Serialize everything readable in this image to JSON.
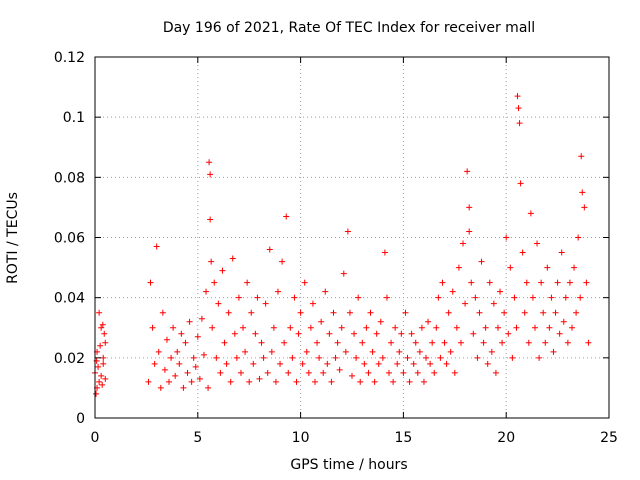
{
  "chart_data": {
    "type": "scatter",
    "title": "Day 196 of 2021, Rate Of TEC Index for receiver mall",
    "xlabel": "GPS time / hours",
    "ylabel": "ROTI / TECUs",
    "xlim": [
      0,
      25
    ],
    "ylim": [
      0,
      0.12
    ],
    "xticks": [
      0,
      5,
      10,
      15,
      20,
      25
    ],
    "xtick_labels": [
      "0",
      "5",
      "10",
      "15",
      "20",
      "25"
    ],
    "yticks": [
      0,
      0.02,
      0.04,
      0.06,
      0.08,
      0.1,
      0.12
    ],
    "ytick_labels": [
      "0",
      "0.02",
      "0.04",
      "0.06",
      "0.08",
      "0.1",
      "0.12"
    ],
    "grid": true,
    "marker": "+",
    "series": [
      {
        "name": "ROTI",
        "color": "#ff0000",
        "x": [
          0.0,
          0.1,
          0.2,
          0.3,
          0.4,
          0.5,
          0.1,
          0.3,
          0.2,
          0.4,
          0.05,
          0.45,
          0.15,
          0.35,
          0.25,
          0.5,
          0.08,
          0.38,
          2.6,
          2.7,
          2.8,
          2.9,
          3.0,
          3.1,
          3.2,
          3.3,
          3.4,
          3.5,
          3.6,
          3.7,
          3.8,
          3.9,
          4.0,
          4.1,
          4.2,
          4.3,
          4.4,
          4.5,
          4.6,
          4.7,
          4.8,
          4.9,
          5.0,
          5.1,
          5.2,
          5.3,
          5.4,
          5.5,
          5.55,
          5.6,
          5.6,
          5.65,
          5.7,
          5.8,
          5.9,
          6.0,
          6.1,
          6.2,
          6.3,
          6.4,
          6.5,
          6.6,
          6.7,
          6.8,
          6.9,
          7.0,
          7.1,
          7.2,
          7.3,
          7.4,
          7.5,
          7.6,
          7.7,
          7.8,
          7.9,
          8.0,
          8.1,
          8.2,
          8.3,
          8.4,
          8.5,
          8.6,
          8.7,
          8.8,
          8.9,
          9.0,
          9.1,
          9.2,
          9.3,
          9.4,
          9.5,
          9.6,
          9.7,
          9.8,
          9.9,
          10.0,
          10.1,
          10.2,
          10.3,
          10.4,
          10.5,
          10.6,
          10.7,
          10.8,
          10.9,
          11.0,
          11.1,
          11.2,
          11.3,
          11.4,
          11.5,
          11.6,
          11.7,
          11.8,
          11.9,
          12.0,
          12.1,
          12.2,
          12.3,
          12.4,
          12.5,
          12.6,
          12.7,
          12.8,
          12.9,
          13.0,
          13.1,
          13.2,
          13.3,
          13.4,
          13.5,
          13.6,
          13.7,
          13.8,
          13.9,
          14.0,
          14.1,
          14.2,
          14.3,
          14.4,
          14.5,
          14.6,
          14.7,
          14.8,
          14.9,
          15.0,
          15.1,
          15.2,
          15.3,
          15.4,
          15.5,
          15.6,
          15.7,
          15.8,
          15.9,
          16.0,
          16.1,
          16.2,
          16.3,
          16.4,
          16.5,
          16.6,
          16.7,
          16.8,
          16.9,
          17.0,
          17.1,
          17.2,
          17.3,
          17.4,
          17.5,
          17.6,
          17.7,
          17.8,
          17.9,
          18.0,
          18.1,
          18.2,
          18.2,
          18.3,
          18.4,
          18.5,
          18.6,
          18.7,
          18.8,
          18.9,
          19.0,
          19.1,
          19.2,
          19.3,
          19.4,
          19.5,
          19.6,
          19.7,
          19.8,
          19.9,
          20.0,
          20.1,
          20.2,
          20.3,
          20.4,
          20.5,
          20.55,
          20.6,
          20.65,
          20.7,
          20.8,
          20.9,
          21.0,
          21.1,
          21.2,
          21.3,
          21.4,
          21.5,
          21.6,
          21.7,
          21.8,
          21.9,
          22.0,
          22.1,
          22.2,
          22.3,
          22.4,
          22.5,
          22.6,
          22.7,
          22.8,
          22.9,
          23.0,
          23.1,
          23.2,
          23.3,
          23.4,
          23.5,
          23.6,
          23.65,
          23.7,
          23.8,
          23.9,
          24.0
        ],
        "y": [
          0.015,
          0.022,
          0.012,
          0.03,
          0.018,
          0.025,
          0.01,
          0.014,
          0.035,
          0.02,
          0.008,
          0.028,
          0.017,
          0.011,
          0.024,
          0.013,
          0.019,
          0.031,
          0.012,
          0.045,
          0.03,
          0.018,
          0.057,
          0.022,
          0.01,
          0.035,
          0.016,
          0.026,
          0.012,
          0.02,
          0.03,
          0.014,
          0.022,
          0.018,
          0.028,
          0.01,
          0.025,
          0.015,
          0.032,
          0.012,
          0.02,
          0.017,
          0.027,
          0.013,
          0.033,
          0.021,
          0.042,
          0.01,
          0.085,
          0.081,
          0.066,
          0.052,
          0.03,
          0.045,
          0.02,
          0.038,
          0.015,
          0.049,
          0.025,
          0.018,
          0.035,
          0.012,
          0.053,
          0.028,
          0.02,
          0.04,
          0.015,
          0.03,
          0.022,
          0.045,
          0.012,
          0.035,
          0.018,
          0.028,
          0.04,
          0.013,
          0.025,
          0.02,
          0.038,
          0.015,
          0.056,
          0.022,
          0.03,
          0.012,
          0.042,
          0.018,
          0.052,
          0.025,
          0.067,
          0.015,
          0.03,
          0.02,
          0.04,
          0.012,
          0.028,
          0.035,
          0.018,
          0.045,
          0.022,
          0.015,
          0.03,
          0.038,
          0.012,
          0.025,
          0.02,
          0.032,
          0.015,
          0.042,
          0.018,
          0.028,
          0.012,
          0.035,
          0.02,
          0.025,
          0.016,
          0.03,
          0.048,
          0.022,
          0.062,
          0.035,
          0.014,
          0.028,
          0.02,
          0.04,
          0.012,
          0.025,
          0.018,
          0.03,
          0.015,
          0.035,
          0.022,
          0.012,
          0.028,
          0.018,
          0.032,
          0.02,
          0.055,
          0.04,
          0.015,
          0.025,
          0.012,
          0.03,
          0.018,
          0.022,
          0.028,
          0.015,
          0.035,
          0.02,
          0.012,
          0.028,
          0.018,
          0.025,
          0.015,
          0.022,
          0.03,
          0.012,
          0.02,
          0.032,
          0.018,
          0.025,
          0.015,
          0.03,
          0.04,
          0.02,
          0.045,
          0.025,
          0.018,
          0.035,
          0.022,
          0.042,
          0.015,
          0.03,
          0.05,
          0.025,
          0.058,
          0.038,
          0.082,
          0.07,
          0.062,
          0.045,
          0.028,
          0.04,
          0.02,
          0.035,
          0.052,
          0.025,
          0.03,
          0.018,
          0.045,
          0.022,
          0.038,
          0.015,
          0.03,
          0.042,
          0.025,
          0.035,
          0.06,
          0.028,
          0.05,
          0.02,
          0.04,
          0.03,
          0.107,
          0.103,
          0.098,
          0.078,
          0.055,
          0.035,
          0.045,
          0.025,
          0.068,
          0.04,
          0.03,
          0.058,
          0.02,
          0.045,
          0.035,
          0.025,
          0.05,
          0.03,
          0.04,
          0.022,
          0.035,
          0.045,
          0.028,
          0.055,
          0.032,
          0.04,
          0.025,
          0.045,
          0.03,
          0.05,
          0.035,
          0.06,
          0.04,
          0.087,
          0.075,
          0.07,
          0.045,
          0.025
        ]
      }
    ]
  }
}
